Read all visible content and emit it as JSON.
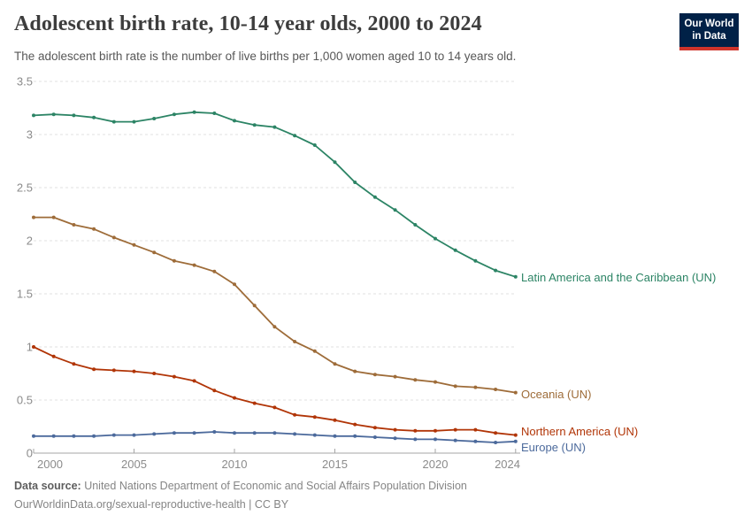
{
  "header": {
    "title": "Adolescent birth rate, 10-14 year olds, 2000 to 2024",
    "subtitle": "The adolescent birth rate is the number of live births per 1,000 women aged 10 to 14 years old.",
    "logo": {
      "line1": "Our World",
      "line2": "in Data",
      "bg_color": "#002147",
      "stripe_color": "#cf342b"
    }
  },
  "footer": {
    "source_label": "Data source:",
    "source_text": " United Nations Department of Economic and Social Affairs Population Division",
    "link_text": "OurWorldinData.org/sexual-reproductive-health",
    "license": " | CC BY"
  },
  "chart_data": {
    "type": "line",
    "title": "Adolescent birth rate, 10-14 year olds, 2000 to 2024",
    "xlabel": "",
    "ylabel": "",
    "ylim": [
      0,
      3.5
    ],
    "xlim": [
      2000,
      2024
    ],
    "grid": "horizontal-dashed",
    "legend_position": "right-of-line-ends",
    "grid_color": "#e0e0e0",
    "axis_color": "#a5a5a5",
    "tick_label_color": "#8b8b8b",
    "x": [
      2000,
      2001,
      2002,
      2003,
      2004,
      2005,
      2006,
      2007,
      2008,
      2009,
      2010,
      2011,
      2012,
      2013,
      2014,
      2015,
      2016,
      2017,
      2018,
      2019,
      2020,
      2021,
      2022,
      2023,
      2024
    ],
    "x_ticks": [
      2000,
      2005,
      2010,
      2015,
      2020,
      2024
    ],
    "y_ticks": [
      0,
      0.5,
      1,
      1.5,
      2,
      2.5,
      3,
      3.5
    ],
    "y_tick_labels": [
      "0",
      "0.5",
      "1",
      "1.5",
      "2",
      "2.5",
      "3",
      "3.5"
    ],
    "series": [
      {
        "name": "Latin America and the Caribbean (UN)",
        "color": "#2C8465",
        "label_dy": 1,
        "values": [
          3.18,
          3.19,
          3.18,
          3.16,
          3.12,
          3.12,
          3.15,
          3.19,
          3.21,
          3.2,
          3.13,
          3.09,
          3.07,
          2.99,
          2.9,
          2.74,
          2.55,
          2.41,
          2.29,
          2.15,
          2.02,
          1.91,
          1.81,
          1.72,
          1.66
        ]
      },
      {
        "name": "Oceania (UN)",
        "color": "#9E6C39",
        "label_dy": 2,
        "values": [
          2.22,
          2.22,
          2.15,
          2.11,
          2.03,
          1.96,
          1.89,
          1.81,
          1.77,
          1.71,
          1.59,
          1.39,
          1.19,
          1.05,
          0.96,
          0.84,
          0.77,
          0.74,
          0.72,
          0.69,
          0.67,
          0.63,
          0.62,
          0.6,
          0.57
        ]
      },
      {
        "name": "Northern America (UN)",
        "color": "#B13507",
        "label_dy": -4,
        "values": [
          1.0,
          0.91,
          0.84,
          0.79,
          0.78,
          0.77,
          0.75,
          0.72,
          0.68,
          0.59,
          0.52,
          0.47,
          0.43,
          0.36,
          0.34,
          0.31,
          0.27,
          0.24,
          0.22,
          0.21,
          0.21,
          0.22,
          0.22,
          0.19,
          0.17
        ]
      },
      {
        "name": "Europe (UN)",
        "color": "#4C6A9C",
        "label_dy": 7,
        "values": [
          0.16,
          0.16,
          0.16,
          0.16,
          0.17,
          0.17,
          0.18,
          0.19,
          0.19,
          0.2,
          0.19,
          0.19,
          0.19,
          0.18,
          0.17,
          0.16,
          0.16,
          0.15,
          0.14,
          0.13,
          0.13,
          0.12,
          0.11,
          0.1,
          0.11
        ]
      }
    ]
  }
}
